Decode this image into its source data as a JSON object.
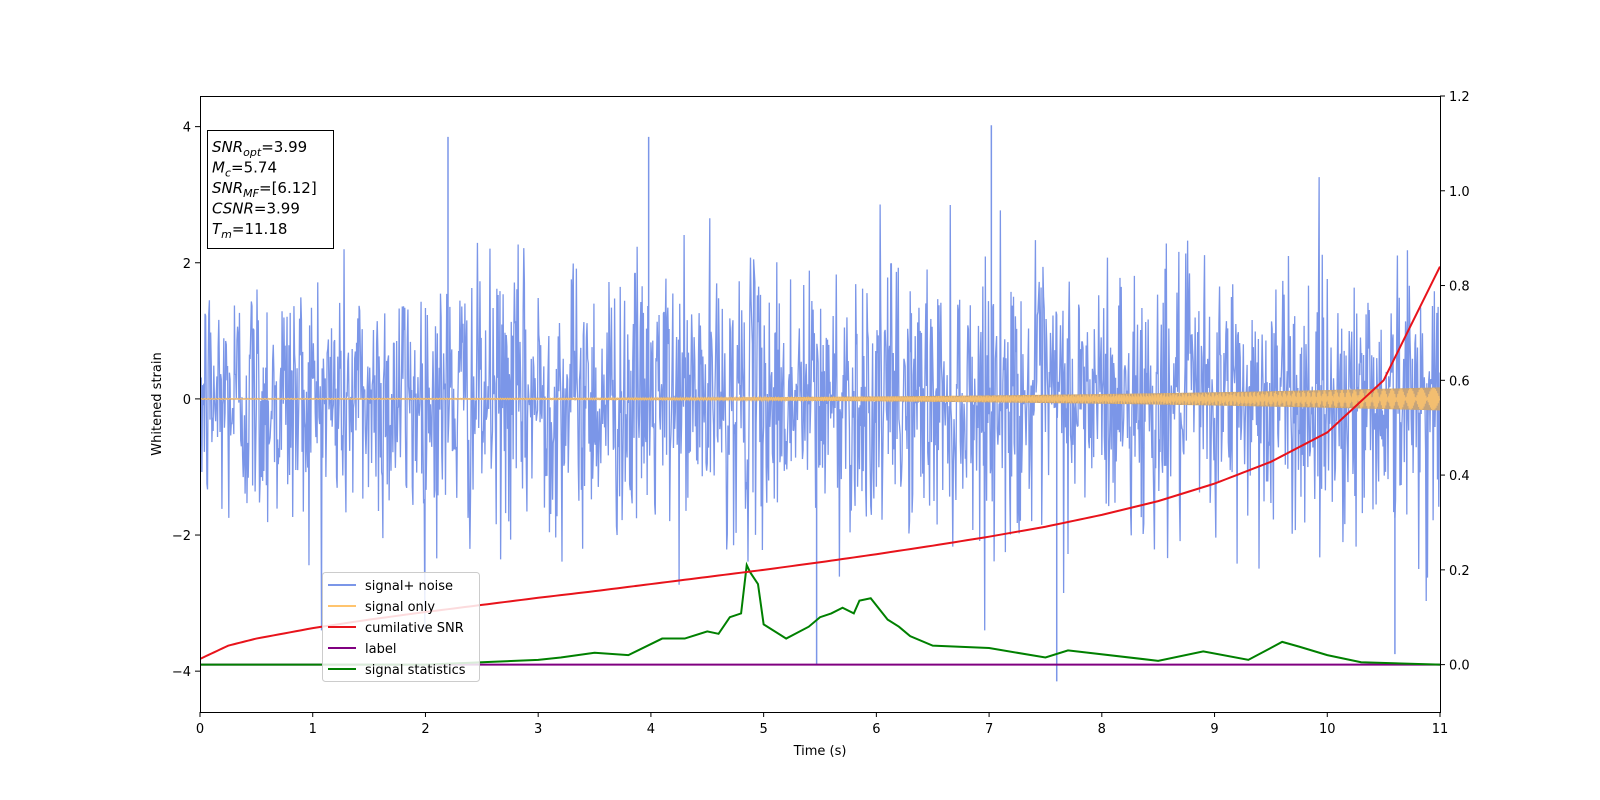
{
  "chart_data": {
    "type": "line",
    "xlabel": "Time (s)",
    "ylabel": "Whitened strain",
    "xlim": [
      0,
      11
    ],
    "ylim": [
      -4.6,
      4.45
    ],
    "y2lim": [
      -0.1,
      1.2
    ],
    "x_ticks": [
      0,
      1,
      2,
      3,
      4,
      5,
      6,
      7,
      8,
      9,
      10,
      11
    ],
    "y_ticks": [
      -4,
      -2,
      0,
      2,
      4
    ],
    "y2_ticks": [
      0.0,
      0.2,
      0.4,
      0.6,
      0.8,
      1.0,
      1.2
    ],
    "x_tick_labels": [
      "0",
      "1",
      "2",
      "3",
      "4",
      "5",
      "6",
      "7",
      "8",
      "9",
      "10",
      "11"
    ],
    "y_tick_labels": [
      "−4",
      "−2",
      "0",
      "2",
      "4"
    ],
    "y2_tick_labels": [
      "0.0",
      "0.2",
      "0.4",
      "0.6",
      "0.8",
      "1.0",
      "1.2"
    ],
    "grid": false,
    "legend_position": "lower-left",
    "info_box": {
      "position": "top-left",
      "lines": [
        {
          "sym": "SNR",
          "sub": "opt",
          "rest": "=3.99"
        },
        {
          "sym": "M",
          "sub": "c",
          "rest": "=5.74"
        },
        {
          "sym": "SNR",
          "sub": "MF",
          "rest": "=[6.12]"
        },
        {
          "sym": "CSNR",
          "sub": "",
          "rest": "=3.99"
        },
        {
          "sym": "T",
          "sub": "m",
          "rest": "=11.18"
        }
      ]
    },
    "series": [
      {
        "name": "signal+ noise",
        "color": "#7b96e8",
        "axis": "left",
        "kind": "noise",
        "sample_rate": 180,
        "stats": {
          "mean": 0.0,
          "std": 1.0,
          "max_peak": 4.02,
          "min_peak": -4.15
        }
      },
      {
        "name": "signal only",
        "color": "#ffc46e",
        "axis": "left",
        "kind": "chirp",
        "amplitude_start": 0.01,
        "amplitude_end": 0.17
      },
      {
        "name": "cumilative SNR",
        "color": "#e8131b",
        "axis": "right",
        "x": [
          0,
          0.25,
          0.5,
          1,
          1.5,
          2,
          2.5,
          3,
          3.5,
          4,
          4.5,
          5,
          5.5,
          6,
          6.5,
          7,
          7.5,
          8,
          8.5,
          9,
          9.5,
          10,
          10.5,
          11
        ],
        "y": [
          0.012,
          0.04,
          0.055,
          0.077,
          0.095,
          0.111,
          0.126,
          0.141,
          0.155,
          0.17,
          0.185,
          0.2,
          0.216,
          0.233,
          0.251,
          0.27,
          0.291,
          0.316,
          0.345,
          0.382,
          0.428,
          0.49,
          0.6,
          0.84
        ]
      },
      {
        "name": "label",
        "color": "#800080",
        "axis": "right",
        "x": [
          0,
          11
        ],
        "y": [
          0,
          0
        ]
      },
      {
        "name": "signal statistics",
        "color": "#008000",
        "axis": "right",
        "x": [
          0,
          1,
          2,
          2.5,
          3,
          3.2,
          3.5,
          3.8,
          4.1,
          4.3,
          4.5,
          4.6,
          4.7,
          4.8,
          4.85,
          4.88,
          4.95,
          5.0,
          5.2,
          5.4,
          5.5,
          5.6,
          5.7,
          5.8,
          5.85,
          5.95,
          6.1,
          6.2,
          6.3,
          6.5,
          7.0,
          7.5,
          7.7,
          8.5,
          8.9,
          9.3,
          9.6,
          9.75,
          10.0,
          10.3,
          11
        ],
        "y": [
          0.0,
          0.0,
          0.0,
          0.005,
          0.01,
          0.015,
          0.025,
          0.02,
          0.055,
          0.055,
          0.07,
          0.065,
          0.1,
          0.108,
          0.21,
          0.195,
          0.17,
          0.085,
          0.055,
          0.08,
          0.1,
          0.108,
          0.12,
          0.108,
          0.135,
          0.14,
          0.095,
          0.08,
          0.06,
          0.04,
          0.035,
          0.015,
          0.03,
          0.008,
          0.028,
          0.01,
          0.048,
          0.038,
          0.02,
          0.005,
          0.0
        ]
      }
    ]
  }
}
